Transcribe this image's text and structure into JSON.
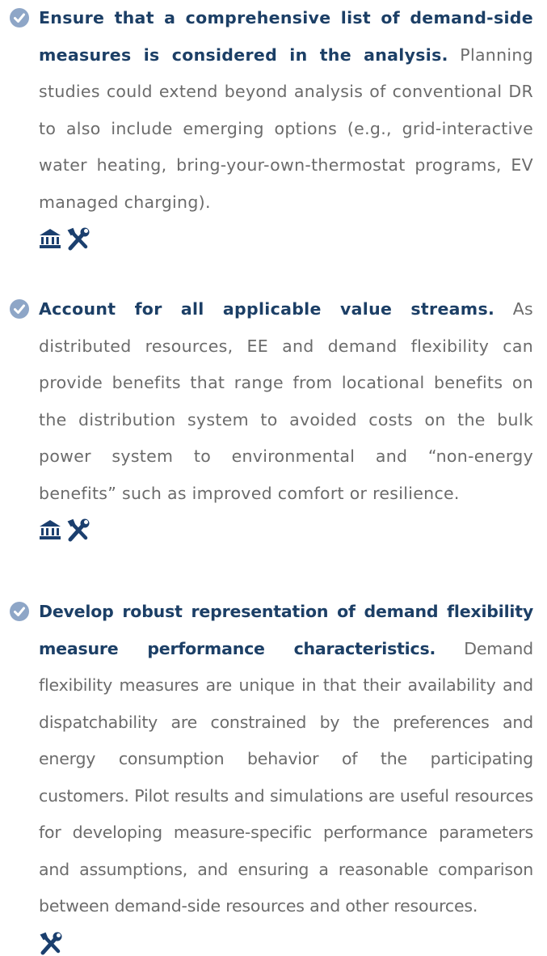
{
  "items": [
    {
      "lead": "Ensure that a comprehensive list of demand-side measures is considered in the analysis.",
      "body": "Planning studies could extend beyond analysis of conventional DR to also include emerging options (e.g., grid-interactive water heating, bring-your-own-thermostat programs, EV managed charging)."
    },
    {
      "lead": "Account for all applicable value streams.",
      "body": "As distributed resources, EE and demand flexibility can provide benefits that range from locational benefits on the distribution system to avoided costs on the bulk power system to environmental and “non-energy benefits” such as improved comfort or resilience."
    },
    {
      "lead": "Develop robust representation of demand flexibility measure performance characteristics.",
      "body": "Demand flexibility measures are unique in that their availability and dispatchability are constrained by the preferences and energy consumption behavior of the participating customers. Pilot results and simulations are useful resources for developing measure-specific performance parameters and assumptions, and ensuring a reasonable comparison between demand-side resources and other resources."
    }
  ]
}
